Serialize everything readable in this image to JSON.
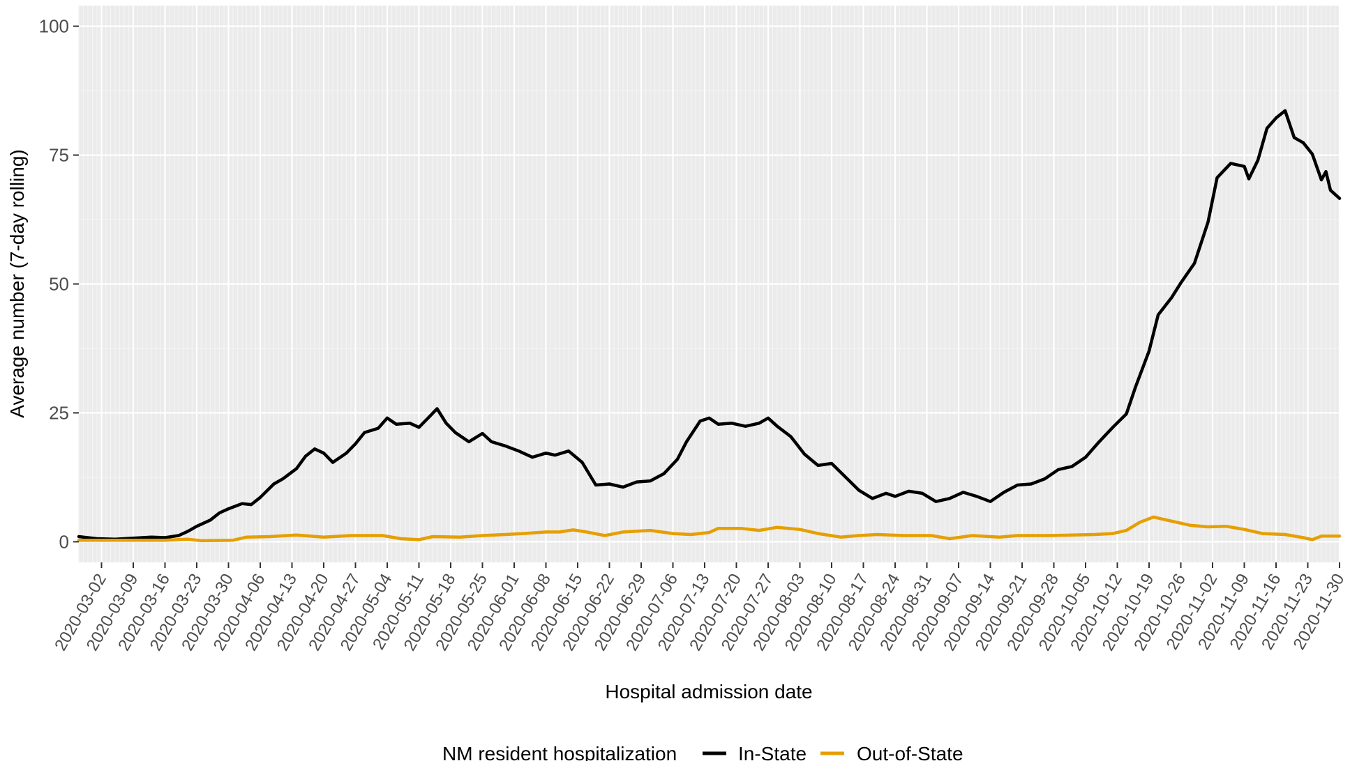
{
  "chart_data": {
    "type": "line",
    "xlabel": "Hospital admission date",
    "ylabel": "Average number (7-day rolling)",
    "ylim": [
      -4,
      104
    ],
    "xlim": [
      "2020-02-26",
      "2020-11-30"
    ],
    "y_ticks": [
      0,
      25,
      50,
      75,
      100
    ],
    "x_ticks": [
      "2020-03-02",
      "2020-03-09",
      "2020-03-16",
      "2020-03-23",
      "2020-03-30",
      "2020-04-06",
      "2020-04-13",
      "2020-04-20",
      "2020-04-27",
      "2020-05-04",
      "2020-05-11",
      "2020-05-18",
      "2020-05-25",
      "2020-06-01",
      "2020-06-08",
      "2020-06-15",
      "2020-06-22",
      "2020-06-29",
      "2020-07-06",
      "2020-07-13",
      "2020-07-20",
      "2020-07-27",
      "2020-08-03",
      "2020-08-10",
      "2020-08-17",
      "2020-08-24",
      "2020-08-31",
      "2020-09-07",
      "2020-09-14",
      "2020-09-21",
      "2020-09-28",
      "2020-10-05",
      "2020-10-12",
      "2020-10-19",
      "2020-10-26",
      "2020-11-02",
      "2020-11-09",
      "2020-11-16",
      "2020-11-23",
      "2020-11-30"
    ],
    "grid": "on, minor gridlines daily",
    "legend": {
      "placement": "bottom",
      "title": "NM resident hospitalization",
      "entries": [
        "In-State",
        "Out-of-State"
      ]
    },
    "series": [
      {
        "name": "In-State",
        "color": "#000000",
        "points": [
          [
            "2020-02-26",
            1.0
          ],
          [
            "2020-03-01",
            0.6
          ],
          [
            "2020-03-05",
            0.5
          ],
          [
            "2020-03-09",
            0.7
          ],
          [
            "2020-03-13",
            0.9
          ],
          [
            "2020-03-16",
            0.8
          ],
          [
            "2020-03-19",
            1.2
          ],
          [
            "2020-03-21",
            2.0
          ],
          [
            "2020-03-23",
            3.0
          ],
          [
            "2020-03-26",
            4.2
          ],
          [
            "2020-03-28",
            5.6
          ],
          [
            "2020-03-30",
            6.4
          ],
          [
            "2020-04-02",
            7.4
          ],
          [
            "2020-04-04",
            7.2
          ],
          [
            "2020-04-06",
            8.6
          ],
          [
            "2020-04-09",
            11.2
          ],
          [
            "2020-04-11",
            12.2
          ],
          [
            "2020-04-14",
            14.2
          ],
          [
            "2020-04-16",
            16.6
          ],
          [
            "2020-04-18",
            18.0
          ],
          [
            "2020-04-20",
            17.2
          ],
          [
            "2020-04-22",
            15.4
          ],
          [
            "2020-04-25",
            17.2
          ],
          [
            "2020-04-27",
            19.0
          ],
          [
            "2020-04-29",
            21.2
          ],
          [
            "2020-05-02",
            22.0
          ],
          [
            "2020-05-04",
            24.0
          ],
          [
            "2020-05-06",
            22.8
          ],
          [
            "2020-05-09",
            23.0
          ],
          [
            "2020-05-11",
            22.2
          ],
          [
            "2020-05-13",
            24.0
          ],
          [
            "2020-05-15",
            25.8
          ],
          [
            "2020-05-17",
            23.0
          ],
          [
            "2020-05-19",
            21.2
          ],
          [
            "2020-05-22",
            19.4
          ],
          [
            "2020-05-25",
            21.0
          ],
          [
            "2020-05-27",
            19.4
          ],
          [
            "2020-05-30",
            18.6
          ],
          [
            "2020-06-02",
            17.6
          ],
          [
            "2020-06-05",
            16.4
          ],
          [
            "2020-06-08",
            17.2
          ],
          [
            "2020-06-10",
            16.8
          ],
          [
            "2020-06-13",
            17.6
          ],
          [
            "2020-06-16",
            15.4
          ],
          [
            "2020-06-19",
            11.0
          ],
          [
            "2020-06-22",
            11.2
          ],
          [
            "2020-06-25",
            10.6
          ],
          [
            "2020-06-28",
            11.6
          ],
          [
            "2020-07-01",
            11.8
          ],
          [
            "2020-07-04",
            13.2
          ],
          [
            "2020-07-07",
            16.0
          ],
          [
            "2020-07-09",
            19.4
          ],
          [
            "2020-07-12",
            23.4
          ],
          [
            "2020-07-14",
            24.0
          ],
          [
            "2020-07-16",
            22.8
          ],
          [
            "2020-07-19",
            23.0
          ],
          [
            "2020-07-22",
            22.4
          ],
          [
            "2020-07-25",
            23.0
          ],
          [
            "2020-07-27",
            24.0
          ],
          [
            "2020-07-29",
            22.4
          ],
          [
            "2020-08-01",
            20.4
          ],
          [
            "2020-08-04",
            17.0
          ],
          [
            "2020-08-07",
            14.8
          ],
          [
            "2020-08-10",
            15.2
          ],
          [
            "2020-08-13",
            12.6
          ],
          [
            "2020-08-16",
            10.0
          ],
          [
            "2020-08-19",
            8.4
          ],
          [
            "2020-08-22",
            9.4
          ],
          [
            "2020-08-24",
            8.8
          ],
          [
            "2020-08-27",
            9.8
          ],
          [
            "2020-08-30",
            9.4
          ],
          [
            "2020-09-02",
            7.8
          ],
          [
            "2020-09-05",
            8.4
          ],
          [
            "2020-09-08",
            9.6
          ],
          [
            "2020-09-11",
            8.8
          ],
          [
            "2020-09-14",
            7.8
          ],
          [
            "2020-09-17",
            9.6
          ],
          [
            "2020-09-20",
            11.0
          ],
          [
            "2020-09-23",
            11.2
          ],
          [
            "2020-09-26",
            12.2
          ],
          [
            "2020-09-29",
            14.0
          ],
          [
            "2020-10-02",
            14.6
          ],
          [
            "2020-10-05",
            16.4
          ],
          [
            "2020-10-08",
            19.4
          ],
          [
            "2020-10-11",
            22.2
          ],
          [
            "2020-10-14",
            24.8
          ],
          [
            "2020-10-16",
            30.0
          ],
          [
            "2020-10-19",
            37.0
          ],
          [
            "2020-10-21",
            44.0
          ],
          [
            "2020-10-24",
            47.4
          ],
          [
            "2020-10-26",
            50.2
          ],
          [
            "2020-10-29",
            54.0
          ],
          [
            "2020-11-01",
            62.0
          ],
          [
            "2020-11-03",
            70.6
          ],
          [
            "2020-11-06",
            73.4
          ],
          [
            "2020-11-09",
            72.8
          ],
          [
            "2020-11-10",
            70.4
          ],
          [
            "2020-11-12",
            74.0
          ],
          [
            "2020-11-14",
            80.2
          ],
          [
            "2020-11-16",
            82.2
          ],
          [
            "2020-11-18",
            83.6
          ],
          [
            "2020-11-20",
            78.4
          ],
          [
            "2020-11-22",
            77.4
          ],
          [
            "2020-11-24",
            75.2
          ],
          [
            "2020-11-26",
            70.2
          ],
          [
            "2020-11-27",
            71.8
          ],
          [
            "2020-11-28",
            68.2
          ],
          [
            "2020-11-30",
            66.6
          ]
        ]
      },
      {
        "name": "Out-of-State",
        "color": "#E69F00",
        "points": [
          [
            "2020-02-26",
            0.3
          ],
          [
            "2020-03-16",
            0.3
          ],
          [
            "2020-03-21",
            0.5
          ],
          [
            "2020-03-24",
            0.2
          ],
          [
            "2020-03-31",
            0.3
          ],
          [
            "2020-04-03",
            0.9
          ],
          [
            "2020-04-08",
            1.0
          ],
          [
            "2020-04-14",
            1.3
          ],
          [
            "2020-04-20",
            0.9
          ],
          [
            "2020-04-26",
            1.2
          ],
          [
            "2020-05-03",
            1.2
          ],
          [
            "2020-05-07",
            0.6
          ],
          [
            "2020-05-11",
            0.4
          ],
          [
            "2020-05-14",
            1.0
          ],
          [
            "2020-05-20",
            0.9
          ],
          [
            "2020-05-25",
            1.2
          ],
          [
            "2020-05-30",
            1.4
          ],
          [
            "2020-06-03",
            1.6
          ],
          [
            "2020-06-08",
            1.9
          ],
          [
            "2020-06-11",
            1.9
          ],
          [
            "2020-06-14",
            2.3
          ],
          [
            "2020-06-17",
            1.9
          ],
          [
            "2020-06-21",
            1.2
          ],
          [
            "2020-06-25",
            1.9
          ],
          [
            "2020-07-01",
            2.2
          ],
          [
            "2020-07-06",
            1.6
          ],
          [
            "2020-07-10",
            1.4
          ],
          [
            "2020-07-14",
            1.8
          ],
          [
            "2020-07-16",
            2.6
          ],
          [
            "2020-07-21",
            2.6
          ],
          [
            "2020-07-25",
            2.2
          ],
          [
            "2020-07-29",
            2.8
          ],
          [
            "2020-08-03",
            2.4
          ],
          [
            "2020-08-07",
            1.6
          ],
          [
            "2020-08-12",
            0.9
          ],
          [
            "2020-08-16",
            1.2
          ],
          [
            "2020-08-20",
            1.4
          ],
          [
            "2020-08-26",
            1.2
          ],
          [
            "2020-09-01",
            1.2
          ],
          [
            "2020-09-05",
            0.6
          ],
          [
            "2020-09-10",
            1.2
          ],
          [
            "2020-09-16",
            0.9
          ],
          [
            "2020-09-20",
            1.2
          ],
          [
            "2020-09-27",
            1.2
          ],
          [
            "2020-10-02",
            1.3
          ],
          [
            "2020-10-07",
            1.4
          ],
          [
            "2020-10-11",
            1.6
          ],
          [
            "2020-10-14",
            2.2
          ],
          [
            "2020-10-17",
            3.8
          ],
          [
            "2020-10-20",
            4.8
          ],
          [
            "2020-10-22",
            4.4
          ],
          [
            "2020-10-25",
            3.8
          ],
          [
            "2020-10-28",
            3.2
          ],
          [
            "2020-11-01",
            2.9
          ],
          [
            "2020-11-05",
            3.0
          ],
          [
            "2020-11-09",
            2.4
          ],
          [
            "2020-11-13",
            1.6
          ],
          [
            "2020-11-18",
            1.4
          ],
          [
            "2020-11-22",
            0.8
          ],
          [
            "2020-11-24",
            0.4
          ],
          [
            "2020-11-26",
            1.1
          ],
          [
            "2020-11-30",
            1.1
          ]
        ]
      }
    ]
  }
}
